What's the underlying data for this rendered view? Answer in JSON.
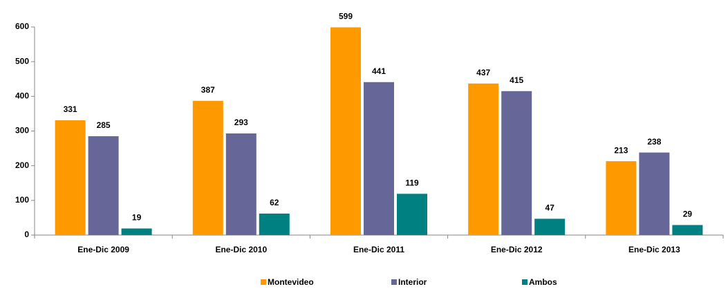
{
  "chart_data": {
    "type": "bar",
    "categories": [
      "Ene-Dic 2009",
      "Ene-Dic 2010",
      "Ene-Dic 2011",
      "Ene-Dic 2012",
      "Ene-Dic 2013"
    ],
    "series": [
      {
        "name": "Montevideo",
        "color": "#ff9900",
        "values": [
          331,
          387,
          599,
          437,
          213
        ]
      },
      {
        "name": "Interior",
        "color": "#666699",
        "values": [
          285,
          293,
          441,
          415,
          238
        ]
      },
      {
        "name": "Ambos",
        "color": "#008080",
        "values": [
          19,
          62,
          119,
          47,
          29
        ]
      }
    ],
    "ylim": [
      0,
      600
    ],
    "yticks": [
      0,
      100,
      200,
      300,
      400,
      500,
      600
    ],
    "grid": false,
    "legend": "bottom"
  }
}
